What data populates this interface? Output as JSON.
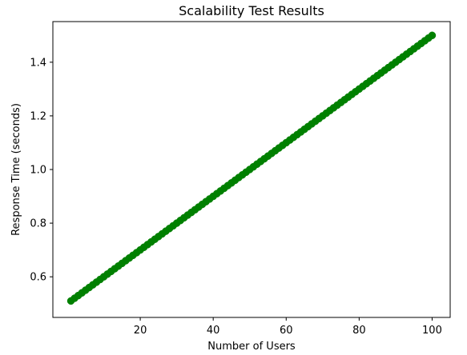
{
  "chart_data": {
    "type": "line",
    "title": "Scalability Test Results",
    "xlabel": "Number of Users",
    "ylabel": "Response Time (seconds)",
    "xlim": [
      -3.95,
      104.95
    ],
    "ylim": [
      0.4485,
      1.5515
    ],
    "xticks": [
      20,
      40,
      60,
      80,
      100
    ],
    "yticks": [
      0.6,
      0.8,
      1.0,
      1.2,
      1.4
    ],
    "xtick_labels": [
      "20",
      "40",
      "60",
      "80",
      "100"
    ],
    "ytick_labels": [
      "0.6",
      "0.8",
      "1.0",
      "1.2",
      "1.4"
    ],
    "grid": false,
    "color": "#008000",
    "marker": "circle",
    "series": [
      {
        "x": [
          1,
          2,
          3,
          4,
          5,
          6,
          7,
          8,
          9,
          10,
          11,
          12,
          13,
          14,
          15,
          16,
          17,
          18,
          19,
          20,
          21,
          22,
          23,
          24,
          25,
          26,
          27,
          28,
          29,
          30,
          31,
          32,
          33,
          34,
          35,
          36,
          37,
          38,
          39,
          40,
          41,
          42,
          43,
          44,
          45,
          46,
          47,
          48,
          49,
          50,
          51,
          52,
          53,
          54,
          55,
          56,
          57,
          58,
          59,
          60,
          61,
          62,
          63,
          64,
          65,
          66,
          67,
          68,
          69,
          70,
          71,
          72,
          73,
          74,
          75,
          76,
          77,
          78,
          79,
          80,
          81,
          82,
          83,
          84,
          85,
          86,
          87,
          88,
          89,
          90,
          91,
          92,
          93,
          94,
          95,
          96,
          97,
          98,
          99,
          100
        ],
        "y": [
          0.51,
          0.52,
          0.53,
          0.54,
          0.55,
          0.56,
          0.57,
          0.58,
          0.59,
          0.6,
          0.61,
          0.62,
          0.63,
          0.64,
          0.65,
          0.66,
          0.67,
          0.68,
          0.69,
          0.7,
          0.71,
          0.72,
          0.73,
          0.74,
          0.75,
          0.76,
          0.77,
          0.78,
          0.79,
          0.8,
          0.81,
          0.82,
          0.83,
          0.84,
          0.85,
          0.86,
          0.87,
          0.88,
          0.89,
          0.9,
          0.91,
          0.92,
          0.93,
          0.94,
          0.95,
          0.96,
          0.97,
          0.98,
          0.99,
          1.0,
          1.01,
          1.02,
          1.03,
          1.04,
          1.05,
          1.06,
          1.07,
          1.08,
          1.09,
          1.1,
          1.11,
          1.12,
          1.13,
          1.14,
          1.15,
          1.16,
          1.17,
          1.18,
          1.19,
          1.2,
          1.21,
          1.22,
          1.23,
          1.24,
          1.25,
          1.26,
          1.27,
          1.28,
          1.29,
          1.3,
          1.31,
          1.32,
          1.33,
          1.34,
          1.35,
          1.36,
          1.37,
          1.38,
          1.39,
          1.4,
          1.41,
          1.42,
          1.43,
          1.44,
          1.45,
          1.46,
          1.47,
          1.48,
          1.49,
          1.5
        ]
      }
    ]
  }
}
